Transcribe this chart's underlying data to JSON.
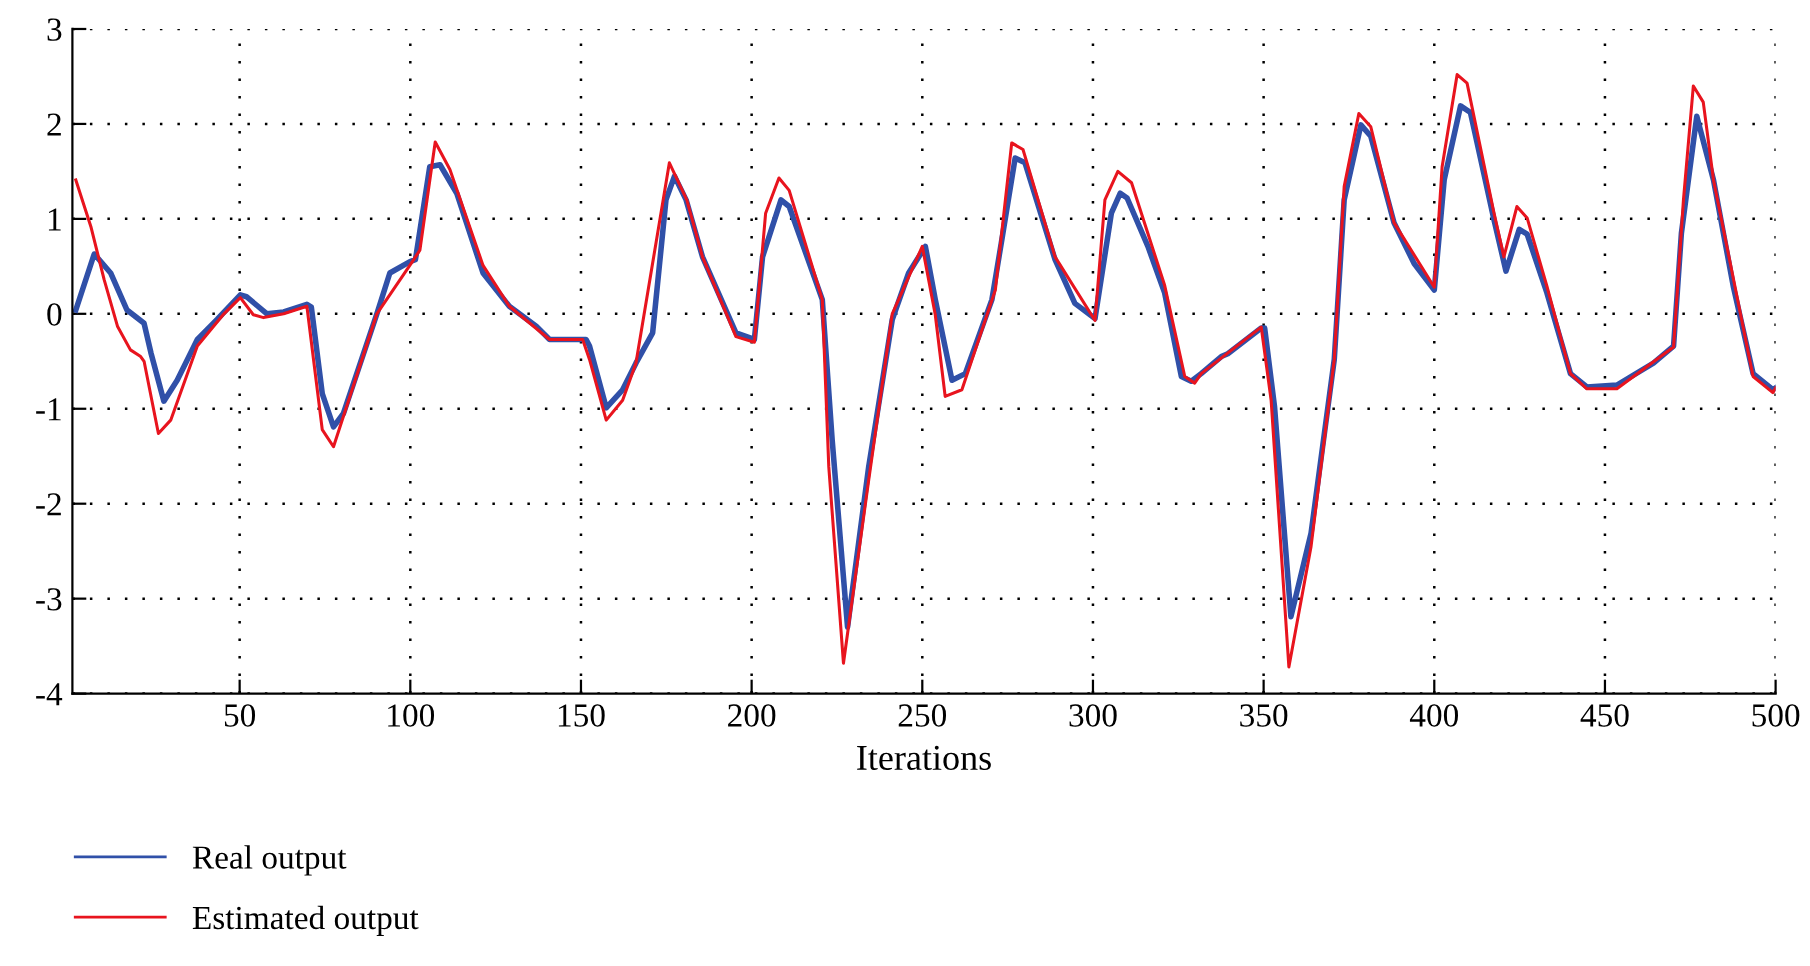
{
  "chart_data": {
    "type": "line",
    "xlabel": "Iterations",
    "xlim": [
      1,
      500
    ],
    "xticks": [
      50,
      100,
      150,
      200,
      250,
      300,
      350,
      400,
      450,
      500
    ],
    "ylim": [
      -4,
      3
    ],
    "yticks": [
      -4,
      -3,
      -2,
      -1,
      0,
      1,
      2,
      3
    ],
    "grid": true,
    "legend": "bottom left",
    "line_style": "solid",
    "marker": "none",
    "series": [
      {
        "name": "Real output",
        "color": "#3050a8",
        "x": [
          2,
          7.4,
          12.2,
          17,
          22,
          24,
          27.8,
          31.7,
          37.6,
          43.4,
          50.2,
          52,
          58,
          62.9,
          69.7,
          71,
          74.2,
          77.5,
          80.4,
          90.2,
          94,
          99.9,
          101.5,
          105.7,
          108.7,
          113.6,
          121.3,
          129,
          136.9,
          140.8,
          151.5,
          152.5,
          157.4,
          162.2,
          166.1,
          171,
          174.9,
          177.4,
          180.8,
          185.6,
          195.4,
          200.8,
          203.2,
          208.6,
          211,
          220.7,
          223.6,
          228.1,
          234.3,
          241.2,
          246,
          250.9,
          253.8,
          258.7,
          262.6,
          270.4,
          273.3,
          277.2,
          280.1,
          288.9,
          294.7,
          300.6,
          305.4,
          308,
          310,
          316.1,
          321,
          325.9,
          328.8,
          331.7,
          337.6,
          339.5,
          349.3,
          350.3,
          353.2,
          358,
          363.9,
          370.7,
          373.6,
          378.5,
          381.4,
          388.2,
          394.1,
          400,
          402.9,
          407.7,
          410.6,
          417.5,
          421,
          424.9,
          427.2,
          433,
          439.9,
          444.7,
          453.5,
          464.2,
          470.1,
          472.4,
          476.9,
          481.8,
          487.6,
          493.4,
          499.2,
          500
        ],
        "values": [
          0.04,
          0.63,
          0.43,
          0.04,
          -0.1,
          -0.41,
          -0.92,
          -0.7,
          -0.27,
          -0.06,
          0.2,
          0.18,
          0,
          0.02,
          0.1,
          0.07,
          -0.84,
          -1.19,
          -1.05,
          0,
          0.43,
          0.55,
          0.57,
          1.55,
          1.57,
          1.27,
          0.43,
          0.08,
          -0.13,
          -0.27,
          -0.27,
          -0.34,
          -0.99,
          -0.8,
          -0.52,
          -0.2,
          1.2,
          1.45,
          1.2,
          0.6,
          -0.2,
          -0.27,
          0.6,
          1.2,
          1.13,
          0.15,
          -1.33,
          -3.3,
          -1.61,
          -0.06,
          0.43,
          0.71,
          0.15,
          -0.7,
          -0.63,
          0.15,
          0.78,
          1.64,
          1.59,
          0.57,
          0.11,
          -0.05,
          1.06,
          1.27,
          1.22,
          0.71,
          0.22,
          -0.66,
          -0.71,
          -0.63,
          -0.45,
          -0.42,
          -0.15,
          -0.15,
          -0.98,
          -3.19,
          -2.31,
          -0.48,
          1.2,
          1.99,
          1.87,
          0.96,
          0.53,
          0.25,
          1.41,
          2.19,
          2.12,
          0.99,
          0.45,
          0.89,
          0.84,
          0.22,
          -0.63,
          -0.77,
          -0.75,
          -0.52,
          -0.34,
          0.85,
          2.08,
          1.41,
          0.29,
          -0.63,
          -0.8,
          -0.78
        ]
      },
      {
        "name": "Estimated output",
        "color": "#e8141e",
        "x": [
          2,
          6.4,
          10.3,
          14.2,
          18,
          21,
          22,
          26.2,
          29.8,
          37.6,
          45.4,
          50.2,
          54,
          57,
          62.9,
          69.7,
          74.2,
          77.5,
          90.2,
          101,
          102.8,
          107.3,
          111.6,
          121.3,
          129,
          140.8,
          150.5,
          152.5,
          157.4,
          162.2,
          166.1,
          175.9,
          181,
          185.6,
          195.4,
          200.8,
          204.1,
          208,
          211,
          220.7,
          222.6,
          226.9,
          234.3,
          241.2,
          250,
          253.8,
          256.7,
          261.6,
          271.4,
          276.2,
          279.5,
          288.9,
          300.6,
          303.5,
          307.3,
          311.3,
          321,
          326.9,
          329.8,
          331.7,
          349.3,
          352.2,
          357.4,
          363.9,
          370.7,
          373.6,
          377.9,
          381.4,
          388.2,
          400,
          402.3,
          406.7,
          409.6,
          417.5,
          420.4,
          424.2,
          427.2,
          433,
          439.9,
          444.7,
          453.5,
          470.1,
          473,
          475.9,
          478.8,
          481.8,
          493.4,
          499.2,
          500
        ],
        "values": [
          1.41,
          0.92,
          0.36,
          -0.13,
          -0.38,
          -0.45,
          -0.5,
          -1.26,
          -1.12,
          -0.34,
          0,
          0.17,
          -0.01,
          -0.04,
          0,
          0.08,
          -1.22,
          -1.4,
          0,
          0.57,
          0.67,
          1.81,
          1.52,
          0.51,
          0.08,
          -0.27,
          -0.27,
          -0.48,
          -1.12,
          -0.91,
          -0.52,
          1.59,
          1.2,
          0.6,
          -0.24,
          -0.3,
          1.06,
          1.43,
          1.3,
          0.15,
          -1.61,
          -3.68,
          -1.75,
          0,
          0.71,
          -0.01,
          -0.87,
          -0.8,
          0.25,
          1.8,
          1.73,
          0.6,
          -0.07,
          1.2,
          1.5,
          1.38,
          0.3,
          -0.66,
          -0.73,
          -0.63,
          -0.14,
          -0.91,
          -3.72,
          -2.45,
          -0.48,
          1.34,
          2.11,
          1.97,
          0.96,
          0.28,
          1.55,
          2.52,
          2.43,
          1.06,
          0.6,
          1.13,
          1.01,
          0.29,
          -0.63,
          -0.79,
          -0.79,
          -0.35,
          1.2,
          2.4,
          2.23,
          1.41,
          -0.66,
          -0.83,
          -0.78
        ]
      }
    ]
  }
}
